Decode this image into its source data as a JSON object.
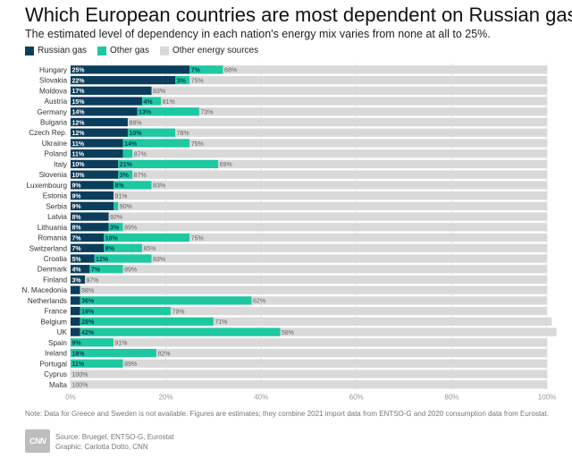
{
  "title": "Which European countries are most dependent on Russian gas?",
  "subtitle": "The estimated level of dependency in each nation's energy mix varies from none at all to 25%.",
  "legend": [
    {
      "label": "Russian gas",
      "color": "#0b3d5c"
    },
    {
      "label": "Other gas",
      "color": "#1ec8a0"
    },
    {
      "label": "Other energy sources",
      "color": "#d9d9d9"
    }
  ],
  "chart_data": {
    "type": "bar",
    "orientation": "horizontal",
    "stacked": true,
    "title": "Which European countries are most dependent on Russian gas?",
    "x_ticks": [
      "0%",
      "20%",
      "40%",
      "60%",
      "80%",
      "100%"
    ],
    "xlim": [
      0,
      100
    ],
    "categories": [
      "Hungary",
      "Slovakia",
      "Moldova",
      "Austria",
      "Germany",
      "Bulgaria",
      "Czech Rep.",
      "Ukraine",
      "Poland",
      "Italy",
      "Slovenia",
      "Luxembourg",
      "Estonia",
      "Serbia",
      "Latvia",
      "Lithuania",
      "Romania",
      "Switzerland",
      "Croatia",
      "Denmark",
      "Finland",
      "N. Macedonia",
      "Netherlands",
      "France",
      "Belgium",
      "UK",
      "Spain",
      "Ireland",
      "Portugal",
      "Cyprus",
      "Malta"
    ],
    "series": [
      {
        "name": "Russian gas",
        "color": "#0b3d5c",
        "values": [
          25,
          22,
          17,
          15,
          14,
          12,
          12,
          11,
          11,
          10,
          10,
          9,
          9,
          9,
          8,
          8,
          7,
          7,
          5,
          4,
          3,
          2,
          2,
          2,
          2,
          2,
          0,
          0,
          0,
          0,
          0
        ],
        "labels": [
          "25%",
          "22%",
          "17%",
          "15%",
          "14%",
          "12%",
          "12%",
          "11%",
          "11%",
          "10%",
          "10%",
          "9%",
          "9%",
          "9%",
          "8%",
          "8%",
          "7%",
          "7%",
          "5%",
          "4%",
          "3%",
          "",
          "",
          "",
          "",
          "",
          "",
          "",
          "",
          "",
          ""
        ]
      },
      {
        "name": "Other gas",
        "color": "#1ec8a0",
        "values": [
          7,
          3,
          0,
          4,
          13,
          0,
          10,
          14,
          2,
          21,
          3,
          8,
          0,
          1,
          0,
          3,
          18,
          8,
          12,
          7,
          0,
          0,
          36,
          19,
          28,
          42,
          9,
          18,
          11,
          0,
          0
        ],
        "labels": [
          "7%",
          "3%",
          "",
          "4%",
          "13%",
          "",
          "10%",
          "14%",
          "",
          "21%",
          "3%",
          "8%",
          "",
          "",
          "",
          "3%",
          "18%",
          "8%",
          "12%",
          "7%",
          "",
          "",
          "36%",
          "19%",
          "28%",
          "42%",
          "9%",
          "18%",
          "11%",
          "",
          ""
        ]
      },
      {
        "name": "Other energy sources",
        "color": "#d9d9d9",
        "values": [
          68,
          75,
          83,
          81,
          73,
          88,
          78,
          75,
          87,
          69,
          87,
          83,
          91,
          90,
          92,
          89,
          75,
          85,
          83,
          89,
          97,
          98,
          62,
          79,
          71,
          58,
          91,
          82,
          89,
          100,
          100
        ],
        "labels": [
          "68%",
          "75%",
          "83%",
          "81%",
          "73%",
          "88%",
          "78%",
          "75%",
          "87%",
          "69%",
          "87%",
          "83%",
          "91%",
          "90%",
          "92%",
          "89%",
          "75%",
          "85%",
          "83%",
          "89%",
          "97%",
          "98%",
          "62%",
          "79%",
          "71%",
          "58%",
          "91%",
          "82%",
          "89%",
          "100%",
          "100%"
        ]
      }
    ]
  },
  "note": "Note: Data for Greece and Sweden is not available. Figures are estimates; they combine 2021 import data from ENTSO-G and 2020 consumption data from Eurostat.",
  "logo_text": "CNN",
  "source_line": "Source: Bruegel, ENTSO-G, Eurostat",
  "graphic_line": "Graphic: Carlotta Dotto, CNN"
}
